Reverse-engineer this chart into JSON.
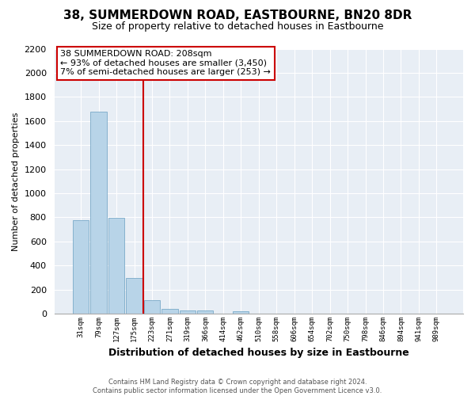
{
  "title": "38, SUMMERDOWN ROAD, EASTBOURNE, BN20 8DR",
  "subtitle": "Size of property relative to detached houses in Eastbourne",
  "xlabel": "Distribution of detached houses by size in Eastbourne",
  "ylabel": "Number of detached properties",
  "footer_line1": "Contains HM Land Registry data © Crown copyright and database right 2024.",
  "footer_line2": "Contains public sector information licensed under the Open Government Licence v3.0.",
  "bar_labels": [
    "31sqm",
    "79sqm",
    "127sqm",
    "175sqm",
    "223sqm",
    "271sqm",
    "319sqm",
    "366sqm",
    "414sqm",
    "462sqm",
    "510sqm",
    "558sqm",
    "606sqm",
    "654sqm",
    "702sqm",
    "750sqm",
    "798sqm",
    "846sqm",
    "894sqm",
    "941sqm",
    "989sqm"
  ],
  "bar_values": [
    775,
    1680,
    795,
    300,
    115,
    40,
    25,
    25,
    0,
    20,
    0,
    0,
    0,
    0,
    0,
    0,
    0,
    0,
    0,
    0,
    0
  ],
  "bar_color": "#b8d4e8",
  "bar_edge_color": "#7aaac8",
  "vline_x_index": 4,
  "vline_color": "#cc0000",
  "annotation_title": "38 SUMMERDOWN ROAD: 208sqm",
  "annotation_line1": "← 93% of detached houses are smaller (3,450)",
  "annotation_line2": "7% of semi-detached houses are larger (253) →",
  "annotation_box_color": "#ffffff",
  "annotation_box_edge": "#cc0000",
  "ylim": [
    0,
    2200
  ],
  "yticks": [
    0,
    200,
    400,
    600,
    800,
    1000,
    1200,
    1400,
    1600,
    1800,
    2000,
    2200
  ],
  "bg_color": "#ffffff",
  "plot_bg_color": "#e8eef5",
  "grid_color": "#ffffff"
}
